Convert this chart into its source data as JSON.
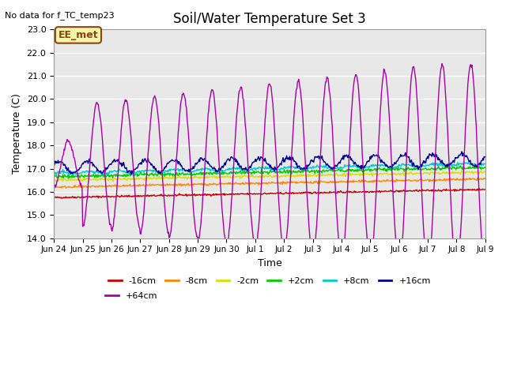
{
  "title": "Soil/Water Temperature Set 3",
  "no_data_text": "No data for f_TC_temp23",
  "ee_met_label": "EE_met",
  "ylabel": "Temperature (C)",
  "xlabel": "Time",
  "ylim": [
    14.0,
    23.0
  ],
  "yticks": [
    14.0,
    15.0,
    16.0,
    17.0,
    18.0,
    19.0,
    20.0,
    21.0,
    22.0,
    23.0
  ],
  "plot_bg_color": "#e8e8e8",
  "legend_labels": [
    "-16cm",
    "-8cm",
    "-2cm",
    "+2cm",
    "+8cm",
    "+16cm",
    "+64cm"
  ],
  "legend_colors": [
    "#cc0000",
    "#ff8800",
    "#dddd00",
    "#00cc00",
    "#00cccc",
    "#000099",
    "#aa00aa"
  ],
  "x_tick_labels": [
    "Jun 24",
    "Jun 25",
    "Jun 26",
    "Jun 27",
    "Jun 28",
    "Jun 29",
    "Jun 30",
    "Jul 1",
    "Jul 2",
    "Jul 3",
    "Jul 4",
    "Jul 5",
    "Jul 6",
    "Jul 7",
    "Jul 8",
    "Jul 9"
  ],
  "num_days": 15,
  "points_per_day": 48
}
